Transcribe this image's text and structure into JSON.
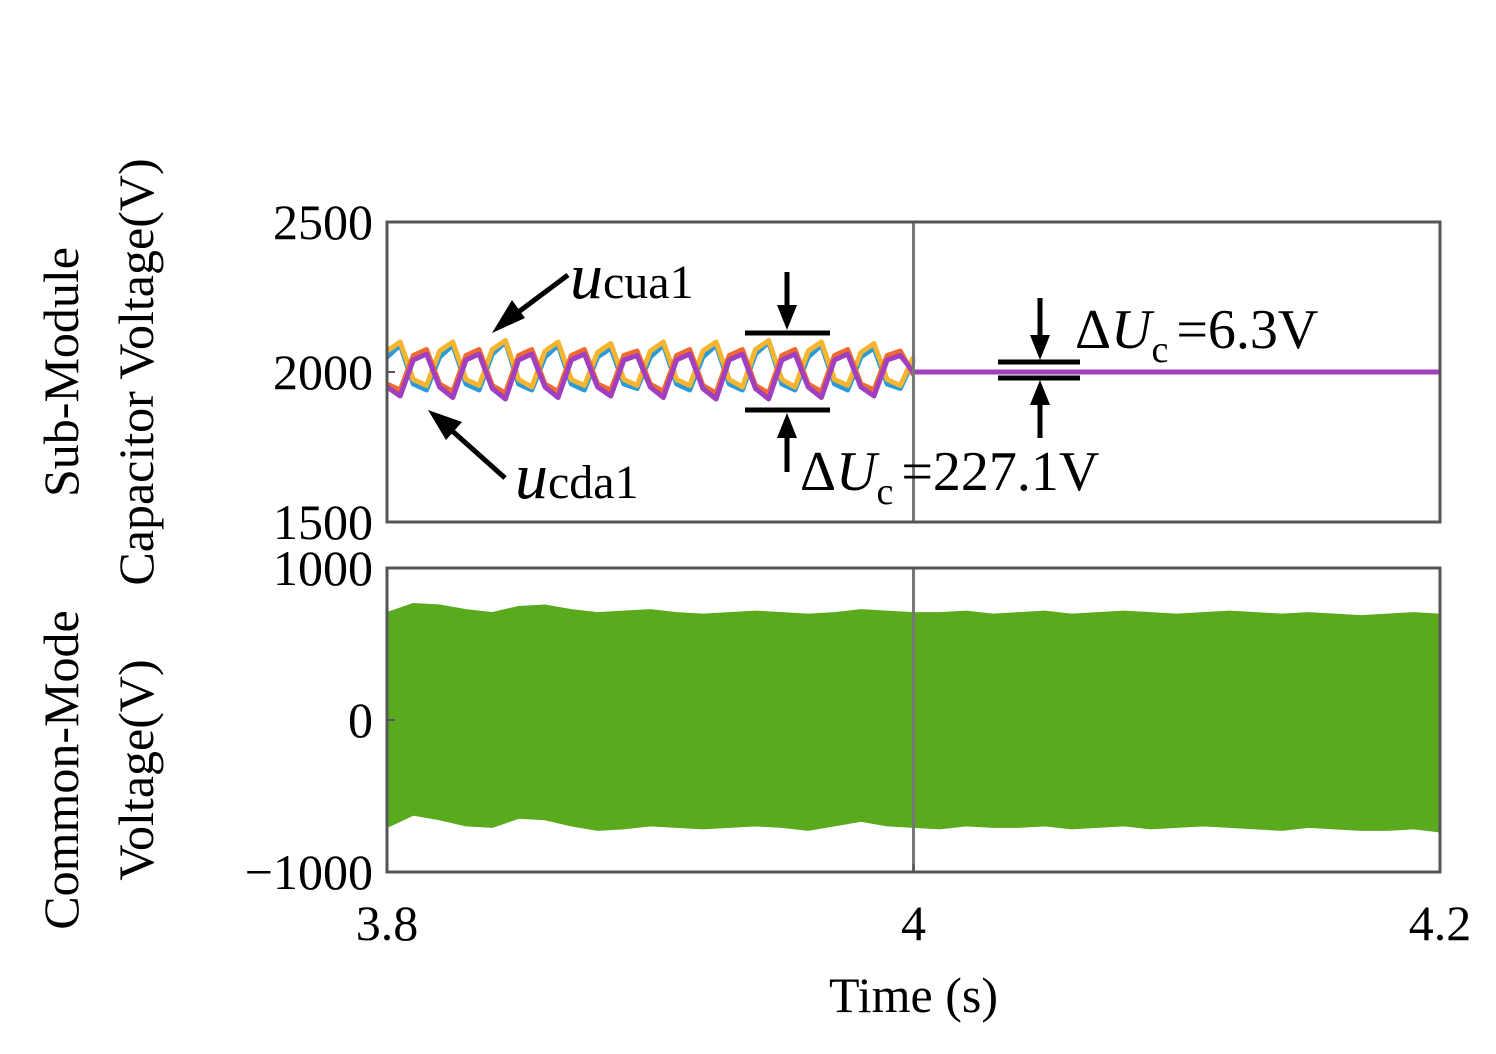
{
  "chart_data": [
    {
      "type": "line",
      "ylabel": [
        "Sub-Module",
        "Capacitor Voltage(V)"
      ],
      "xlim": [
        3.8,
        4.2
      ],
      "ylim": [
        1500,
        2500
      ],
      "yticks": [
        1500,
        2000,
        2500
      ],
      "vline": 4,
      "x": [
        3.8,
        3.805,
        3.81,
        3.815,
        3.82,
        3.825,
        3.83,
        3.835,
        3.84,
        3.845,
        3.85,
        3.855,
        3.86,
        3.865,
        3.87,
        3.875,
        3.88,
        3.885,
        3.89,
        3.895,
        3.9,
        3.905,
        3.91,
        3.915,
        3.92,
        3.925,
        3.93,
        3.935,
        3.94,
        3.945,
        3.95,
        3.955,
        3.96,
        3.965,
        3.97,
        3.975,
        3.98,
        3.985,
        3.99,
        3.995,
        4.0,
        4.2
      ],
      "series": [
        {
          "name": "u",
          "name_sub": "cua1",
          "color": "#2a9ad8",
          "values": [
            2050,
            2090,
            1960,
            1940,
            2050,
            2090,
            1960,
            1940,
            2060,
            2100,
            1960,
            1940,
            2050,
            2090,
            1960,
            1940,
            2050,
            2080,
            1960,
            1945,
            2050,
            2090,
            1960,
            1940,
            2050,
            2090,
            1960,
            1940,
            2060,
            2100,
            1960,
            1940,
            2050,
            2090,
            1960,
            1940,
            2050,
            2080,
            1960,
            1945,
            2040,
            null
          ]
        },
        {
          "color": "#f5b530",
          "values": [
            2070,
            2100,
            1975,
            1955,
            2070,
            2100,
            1975,
            1955,
            2075,
            2105,
            1975,
            1950,
            2070,
            2100,
            1975,
            1955,
            2065,
            2095,
            1975,
            1955,
            2070,
            2100,
            1975,
            1955,
            2070,
            2100,
            1975,
            1950,
            2075,
            2105,
            1975,
            1950,
            2070,
            2100,
            1975,
            1955,
            2065,
            2095,
            1975,
            1955,
            2050,
            null
          ]
        },
        {
          "name": "u",
          "name_sub": "cda1",
          "color": "#f06a30",
          "values": [
            1960,
            1940,
            2055,
            2075,
            1960,
            1935,
            2055,
            2075,
            1955,
            1930,
            2055,
            2075,
            1960,
            1935,
            2055,
            2075,
            1960,
            1940,
            2055,
            2070,
            1960,
            1935,
            2055,
            2075,
            1955,
            1930,
            2055,
            2075,
            1955,
            1930,
            2055,
            2075,
            1960,
            1935,
            2055,
            2075,
            1960,
            1940,
            2055,
            2070,
            1990,
            null
          ]
        },
        {
          "color": "#a040c0",
          "values": [
            1950,
            1920,
            2040,
            2060,
            1950,
            1915,
            2040,
            2060,
            1945,
            1910,
            2040,
            2060,
            1950,
            1915,
            2040,
            2060,
            1950,
            1920,
            2040,
            2055,
            1950,
            1915,
            2040,
            2060,
            1945,
            1910,
            2040,
            2060,
            1945,
            1910,
            2040,
            2060,
            1950,
            1915,
            2040,
            2060,
            1950,
            1920,
            2040,
            2055,
            2000,
            2000
          ]
        }
      ],
      "annotations": [
        {
          "pre": "Δ",
          "var": "U",
          "sub": "c",
          "post": "=6.3V"
        },
        {
          "pre": "Δ",
          "var": "U",
          "sub": "c",
          "post": "=227.1V"
        }
      ]
    },
    {
      "type": "range-area",
      "ylabel": [
        "Common-Mode",
        "Voltage(V)"
      ],
      "xlabel": "Time (s)",
      "xlim": [
        3.8,
        4.2
      ],
      "xticks": [
        3.8,
        4,
        4.2
      ],
      "ylim": [
        -1000,
        1000
      ],
      "yticks": [
        {
          "value": -1000,
          "label": "−1000"
        },
        0,
        1000
      ],
      "vline": 4,
      "color": "#5aaa1e",
      "x": [
        3.8,
        3.81,
        3.82,
        3.83,
        3.84,
        3.85,
        3.86,
        3.87,
        3.88,
        3.89,
        3.9,
        3.91,
        3.92,
        3.93,
        3.94,
        3.95,
        3.96,
        3.97,
        3.98,
        3.99,
        4.0,
        4.01,
        4.02,
        4.03,
        4.04,
        4.05,
        4.06,
        4.07,
        4.08,
        4.09,
        4.1,
        4.11,
        4.12,
        4.13,
        4.14,
        4.15,
        4.16,
        4.17,
        4.18,
        4.19,
        4.2
      ],
      "high": [
        700,
        760,
        750,
        720,
        700,
        740,
        750,
        720,
        700,
        710,
        720,
        700,
        690,
        700,
        710,
        700,
        690,
        700,
        720,
        710,
        700,
        700,
        710,
        690,
        700,
        710,
        690,
        700,
        710,
        700,
        690,
        700,
        710,
        700,
        690,
        700,
        690,
        680,
        690,
        700,
        690
      ],
      "low": [
        -700,
        -620,
        -650,
        -690,
        -700,
        -640,
        -650,
        -690,
        -720,
        -710,
        -690,
        -700,
        -710,
        -700,
        -690,
        -700,
        -720,
        -690,
        -660,
        -690,
        -700,
        -710,
        -690,
        -700,
        -700,
        -690,
        -710,
        -700,
        -690,
        -710,
        -700,
        -690,
        -700,
        -710,
        -720,
        -700,
        -710,
        -720,
        -720,
        -710,
        -730
      ]
    }
  ]
}
